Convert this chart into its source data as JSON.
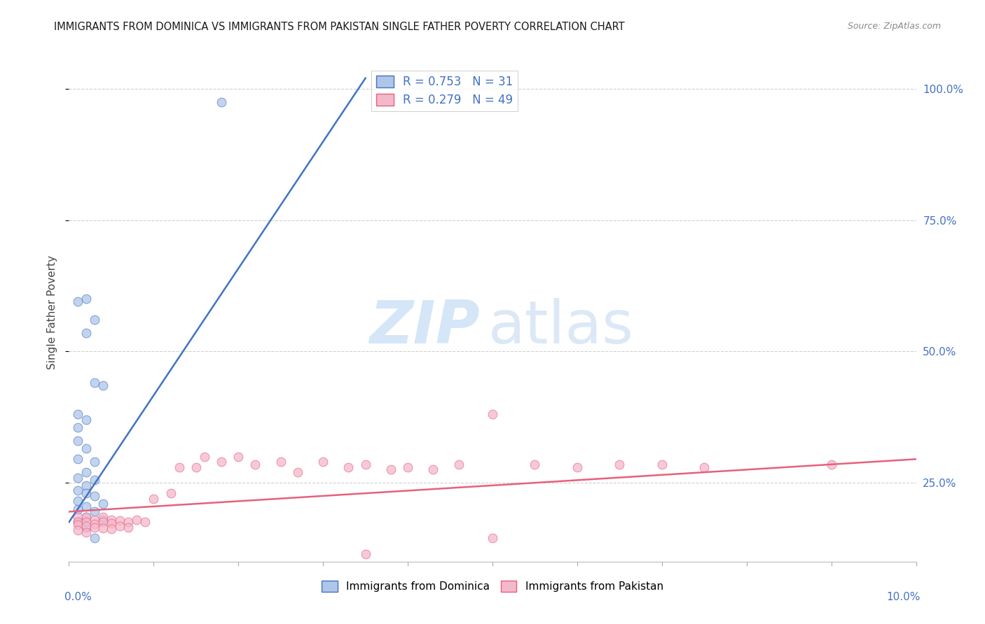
{
  "title": "IMMIGRANTS FROM DOMINICA VS IMMIGRANTS FROM PAKISTAN SINGLE FATHER POVERTY CORRELATION CHART",
  "source": "Source: ZipAtlas.com",
  "ylabel": "Single Father Poverty",
  "dominica_R": 0.753,
  "dominica_N": 31,
  "pakistan_R": 0.279,
  "pakistan_N": 49,
  "dominica_color": "#aec6e8",
  "dominica_line_color": "#4472c4",
  "pakistan_color": "#f4b8cb",
  "pakistan_line_color": "#e8607a",
  "xlim": [
    0.0,
    0.1
  ],
  "ylim": [
    0.1,
    1.05
  ],
  "yticks": [
    0.25,
    0.5,
    0.75,
    1.0
  ],
  "ytick_labels": [
    "25.0%",
    "50.0%",
    "75.0%",
    "100.0%"
  ],
  "xtick_positions": [
    0.0,
    0.01,
    0.02,
    0.03,
    0.04,
    0.05,
    0.06,
    0.07,
    0.08,
    0.09,
    0.1
  ],
  "dominica_line_x": [
    0.0,
    0.035
  ],
  "dominica_line_y": [
    0.175,
    1.02
  ],
  "pakistan_line_x": [
    0.0,
    0.1
  ],
  "pakistan_line_y": [
    0.195,
    0.295
  ],
  "dom_x": [
    0.018,
    0.002,
    0.003,
    0.001,
    0.002,
    0.003,
    0.004,
    0.001,
    0.002,
    0.001,
    0.001,
    0.002,
    0.001,
    0.003,
    0.002,
    0.001,
    0.003,
    0.002,
    0.001,
    0.002,
    0.003,
    0.001,
    0.004,
    0.002,
    0.001,
    0.003,
    0.002,
    0.004,
    0.001,
    0.002,
    0.003
  ],
  "dom_y": [
    0.975,
    0.6,
    0.56,
    0.595,
    0.535,
    0.44,
    0.435,
    0.38,
    0.37,
    0.355,
    0.33,
    0.315,
    0.295,
    0.29,
    0.27,
    0.26,
    0.255,
    0.245,
    0.235,
    0.23,
    0.225,
    0.215,
    0.21,
    0.205,
    0.2,
    0.195,
    0.185,
    0.18,
    0.175,
    0.165,
    0.145
  ],
  "pak_x": [
    0.001,
    0.001,
    0.001,
    0.001,
    0.002,
    0.002,
    0.002,
    0.002,
    0.003,
    0.003,
    0.003,
    0.004,
    0.004,
    0.004,
    0.005,
    0.005,
    0.005,
    0.006,
    0.006,
    0.007,
    0.007,
    0.008,
    0.009,
    0.01,
    0.012,
    0.013,
    0.015,
    0.016,
    0.018,
    0.02,
    0.022,
    0.025,
    0.027,
    0.03,
    0.033,
    0.035,
    0.038,
    0.04,
    0.043,
    0.046,
    0.05,
    0.055,
    0.06,
    0.065,
    0.05,
    0.07,
    0.075,
    0.09,
    0.035
  ],
  "pak_y": [
    0.185,
    0.175,
    0.17,
    0.16,
    0.185,
    0.175,
    0.168,
    0.155,
    0.18,
    0.172,
    0.165,
    0.185,
    0.175,
    0.163,
    0.18,
    0.173,
    0.162,
    0.178,
    0.168,
    0.175,
    0.165,
    0.18,
    0.175,
    0.22,
    0.23,
    0.28,
    0.28,
    0.3,
    0.29,
    0.3,
    0.285,
    0.29,
    0.27,
    0.29,
    0.28,
    0.285,
    0.275,
    0.28,
    0.275,
    0.285,
    0.145,
    0.285,
    0.28,
    0.285,
    0.38,
    0.285,
    0.28,
    0.285,
    0.115
  ]
}
